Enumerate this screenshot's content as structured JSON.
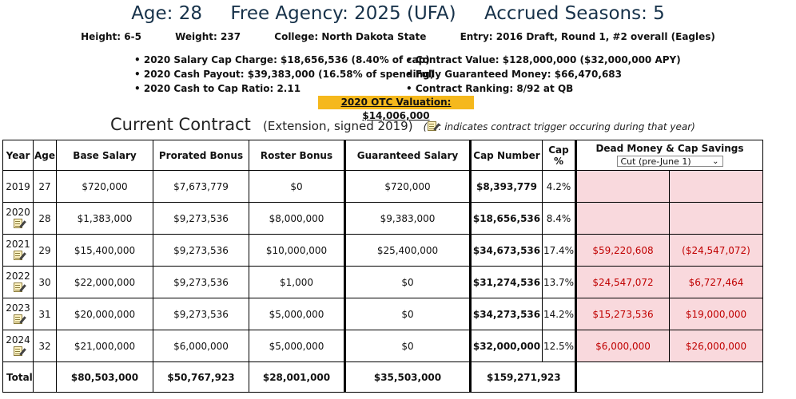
{
  "player": {
    "age": "Age: 28",
    "free_agency": "Free Agency: 2025 (UFA)",
    "accrued": "Accrued Seasons: 5",
    "height": "Height: 6-5",
    "weight": "Weight: 237",
    "college": "College: North Dakota State",
    "entry": "Entry: 2016 Draft, Round 1, #2 overall (Eagles)"
  },
  "stats_left": [
    "2020 Salary Cap Charge: $18,656,536 (8.40% of cap)",
    "2020 Cash Payout: $39,383,000 (16.58% of spending)",
    "2020 Cash to Cap Ratio: 2.11"
  ],
  "stats_right": [
    "Contract Value: $128,000,000 ($32,000,000 APY)",
    "Fully Guaranteed Money: $66,470,683",
    "Contract Ranking: 8/92 at QB"
  ],
  "otc_valuation": "2020 OTC Valuation: $14,006,000",
  "contract": {
    "title": "Current Contract",
    "subtitle": "(Extension, signed 2019)",
    "note_suffix": ": indicates contract trigger occuring during that year)",
    "note_prefix": "("
  },
  "table": {
    "headers": {
      "year": "Year",
      "age": "Age",
      "base": "Base Salary",
      "prorated": "Prorated Bonus",
      "roster": "Roster Bonus",
      "guaranteed": "Guaranteed Salary",
      "cap_number": "Cap Number",
      "cap_pct": "Cap %",
      "dead_money": "Dead Money & Cap Savings",
      "dead_select": "Cut (pre-June 1)"
    },
    "rows": [
      {
        "year": "2019",
        "age": "27",
        "base": "$720,000",
        "prorated": "$7,673,779",
        "roster": "$0",
        "guaranteed": "$720,000",
        "cap": "$8,393,779",
        "pct": "4.2%",
        "dead": "",
        "savings": ""
      },
      {
        "year": "2020",
        "age": "28",
        "base": "$1,383,000",
        "prorated": "$9,273,536",
        "roster": "$8,000,000",
        "guaranteed": "$9,383,000",
        "cap": "$18,656,536",
        "pct": "8.4%",
        "dead": "",
        "savings": ""
      },
      {
        "year": "2021",
        "age": "29",
        "base": "$15,400,000",
        "prorated": "$9,273,536",
        "roster": "$10,000,000",
        "guaranteed": "$25,400,000",
        "cap": "$34,673,536",
        "pct": "17.4%",
        "dead": "$59,220,608",
        "savings": "($24,547,072)"
      },
      {
        "year": "2022",
        "age": "30",
        "base": "$22,000,000",
        "prorated": "$9,273,536",
        "roster": "$1,000",
        "guaranteed": "$0",
        "cap": "$31,274,536",
        "pct": "13.7%",
        "dead": "$24,547,072",
        "savings": "$6,727,464"
      },
      {
        "year": "2023",
        "age": "31",
        "base": "$20,000,000",
        "prorated": "$9,273,536",
        "roster": "$5,000,000",
        "guaranteed": "$0",
        "cap": "$34,273,536",
        "pct": "14.2%",
        "dead": "$15,273,536",
        "savings": "$19,000,000"
      },
      {
        "year": "2024",
        "age": "32",
        "base": "$21,000,000",
        "prorated": "$6,000,000",
        "roster": "$5,000,000",
        "guaranteed": "$0",
        "cap": "$32,000,000",
        "pct": "12.5%",
        "dead": "$6,000,000",
        "savings": "$26,000,000"
      }
    ],
    "total": {
      "label": "Total",
      "base": "$80,503,000",
      "prorated": "$50,767,923",
      "roster": "$28,001,000",
      "guaranteed": "$35,503,000",
      "cap": "$159,271,923"
    }
  },
  "colors": {
    "header_text": "#17324a",
    "otc_highlight": "#f5b81c",
    "dead_bg": "#f9d9dd",
    "dead_text": "#c00000"
  },
  "icons": {
    "trigger": "memo-pencil-icon",
    "dropdown": "chevron-down-icon"
  }
}
